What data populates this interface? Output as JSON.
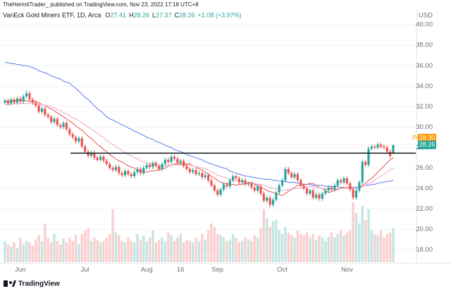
{
  "chart_data": {
    "type": "candlestick",
    "author": "TheHermitTrader_ published on TradingView.com, Nov 23, 2022 17:18 UTC+8",
    "title": "VanEck Gold Miners ETF, 1D, Arca",
    "ohlc_keys": [
      "O",
      "H",
      "L",
      "C"
    ],
    "change_label": "+1.08 (+3.97%)",
    "currency": "USD",
    "footer": "TradingView",
    "up_color": "#26a69a",
    "down_color": "#ef5350",
    "categories": [
      null,
      null,
      null,
      null,
      null,
      "Jun",
      null,
      null,
      null,
      null,
      null,
      null,
      null,
      null,
      null,
      null,
      null,
      null,
      null,
      null,
      null,
      null,
      null,
      null,
      null,
      null,
      "Jul",
      null,
      null,
      null,
      null,
      null,
      null,
      null,
      null,
      null,
      null,
      null,
      null,
      null,
      null,
      null,
      null,
      null,
      null,
      null,
      "Aug",
      null,
      null,
      null,
      null,
      null,
      null,
      null,
      null,
      null,
      null,
      "16",
      null,
      null,
      null,
      null,
      null,
      null,
      null,
      null,
      null,
      null,
      null,
      "Sep",
      null,
      null,
      null,
      null,
      null,
      null,
      null,
      null,
      null,
      null,
      null,
      null,
      null,
      null,
      null,
      null,
      null,
      null,
      null,
      null,
      "Oct",
      null,
      null,
      null,
      null,
      null,
      null,
      null,
      null,
      null,
      null,
      null,
      null,
      null,
      null,
      null,
      null,
      null,
      null,
      null,
      null,
      "Nov",
      null,
      null,
      null,
      null,
      null,
      null,
      null,
      null,
      null,
      null,
      null,
      null,
      null,
      null,
      null
    ],
    "open": [
      32.4,
      32.6,
      32.3,
      32.7,
      32.4,
      32.8,
      32.5,
      33.0,
      33.3,
      32.7,
      32.4,
      32.1,
      31.5,
      31.8,
      31.2,
      31.0,
      30.5,
      30.8,
      30.2,
      30.0,
      30.4,
      29.8,
      29.3,
      29.0,
      28.6,
      28.9,
      28.1,
      27.6,
      27.2,
      27.5,
      27.0,
      26.8,
      27.1,
      26.7,
      26.4,
      26.0,
      25.8,
      26.1,
      25.5,
      25.3,
      25.7,
      25.4,
      25.2,
      25.6,
      25.9,
      25.5,
      26.0,
      26.3,
      26.1,
      26.5,
      26.2,
      25.9,
      26.4,
      26.8,
      26.6,
      27.1,
      26.9,
      26.5,
      26.7,
      26.2,
      25.9,
      25.6,
      25.8,
      25.4,
      25.5,
      25.1,
      25.3,
      24.8,
      24.3,
      23.8,
      23.4,
      23.9,
      24.4,
      24.2,
      24.8,
      25.2,
      25.0,
      24.6,
      24.8,
      24.4,
      24.5,
      24.1,
      23.8,
      24.2,
      23.5,
      22.8,
      23.1,
      22.4,
      22.9,
      23.6,
      24.3,
      24.8,
      25.9,
      25.5,
      25.1,
      25.4,
      24.8,
      24.3,
      24.0,
      23.5,
      23.8,
      23.1,
      23.4,
      23.0,
      23.5,
      23.8,
      24.1,
      23.9,
      24.3,
      24.8,
      24.6,
      25.0,
      24.5,
      23.9,
      23.1,
      23.8,
      24.6,
      26.6,
      26.3,
      27.9,
      28.1,
      28.0,
      28.3,
      28.1,
      28.0,
      27.6,
      27.41
    ],
    "high": [
      32.8,
      32.8,
      32.9,
      32.9,
      33.0,
      33.0,
      33.2,
      33.6,
      33.5,
      32.9,
      32.6,
      32.3,
      32.0,
      32.0,
      31.4,
      31.2,
      31.0,
      31.0,
      30.4,
      30.6,
      30.6,
      30.0,
      29.5,
      29.2,
      29.1,
      29.1,
      28.3,
      27.8,
      27.7,
      27.7,
      27.2,
      27.3,
      27.3,
      26.9,
      26.6,
      26.2,
      26.3,
      26.3,
      25.7,
      25.9,
      25.9,
      25.6,
      25.8,
      26.1,
      26.1,
      26.2,
      26.5,
      26.5,
      26.7,
      26.7,
      26.4,
      26.6,
      27.0,
      27.0,
      27.3,
      27.3,
      27.1,
      26.9,
      26.9,
      26.4,
      26.1,
      26.0,
      26.0,
      25.7,
      25.7,
      25.5,
      25.5,
      25.0,
      24.5,
      24.0,
      24.1,
      24.6,
      24.6,
      25.0,
      25.4,
      25.4,
      25.2,
      25.0,
      25.0,
      24.7,
      24.7,
      24.3,
      24.4,
      24.4,
      23.7,
      23.3,
      23.3,
      23.1,
      23.8,
      24.5,
      25.0,
      26.1,
      26.1,
      25.7,
      25.6,
      25.6,
      25.0,
      24.5,
      24.2,
      24.0,
      24.0,
      23.6,
      23.6,
      23.7,
      24.0,
      24.3,
      24.3,
      24.5,
      25.0,
      25.0,
      25.2,
      25.2,
      24.7,
      24.1,
      24.0,
      24.8,
      26.8,
      26.8,
      28.1,
      28.3,
      28.3,
      28.5,
      28.5,
      28.3,
      28.2,
      27.8,
      28.26
    ],
    "low": [
      32.2,
      32.1,
      32.1,
      32.2,
      32.2,
      32.3,
      32.3,
      32.8,
      32.5,
      32.2,
      31.9,
      31.3,
      31.3,
      31.0,
      30.8,
      30.3,
      30.3,
      30.0,
      29.8,
      29.8,
      29.6,
      29.1,
      28.8,
      28.4,
      28.4,
      27.9,
      27.4,
      27.0,
      27.0,
      26.8,
      26.6,
      26.6,
      26.5,
      26.2,
      25.8,
      25.6,
      25.6,
      25.3,
      25.1,
      25.1,
      25.2,
      25.0,
      25.0,
      25.4,
      25.3,
      25.3,
      25.8,
      25.9,
      25.9,
      26.0,
      25.7,
      25.7,
      26.2,
      26.4,
      26.4,
      26.7,
      26.3,
      26.3,
      26.0,
      25.7,
      25.4,
      25.4,
      25.2,
      25.2,
      24.9,
      24.9,
      24.6,
      24.1,
      23.6,
      23.2,
      23.2,
      23.7,
      24.0,
      24.0,
      24.6,
      24.8,
      24.4,
      24.4,
      24.2,
      24.2,
      23.9,
      23.6,
      23.6,
      23.3,
      22.6,
      22.6,
      22.1,
      22.2,
      22.7,
      23.4,
      24.1,
      24.6,
      25.3,
      24.9,
      24.9,
      24.6,
      24.1,
      23.8,
      23.3,
      23.3,
      22.9,
      22.9,
      22.8,
      22.8,
      23.3,
      23.6,
      23.7,
      23.7,
      24.1,
      24.4,
      24.4,
      24.3,
      23.7,
      22.9,
      22.9,
      23.6,
      24.4,
      26.1,
      26.1,
      27.7,
      27.8,
      27.8,
      27.9,
      27.8,
      27.4,
      27.0,
      27.37
    ],
    "close": [
      32.6,
      32.3,
      32.7,
      32.4,
      32.8,
      32.5,
      33.0,
      33.3,
      32.7,
      32.4,
      32.1,
      31.5,
      31.8,
      31.2,
      31.0,
      30.5,
      30.8,
      30.2,
      30.0,
      30.4,
      29.8,
      29.3,
      29.0,
      28.6,
      28.9,
      28.1,
      27.6,
      27.2,
      27.5,
      27.0,
      26.8,
      27.1,
      26.7,
      26.4,
      26.0,
      25.8,
      26.1,
      25.5,
      25.3,
      25.7,
      25.4,
      25.2,
      25.6,
      25.9,
      25.5,
      26.0,
      26.3,
      26.1,
      26.5,
      26.2,
      25.9,
      26.4,
      26.8,
      26.6,
      27.1,
      26.9,
      26.5,
      26.7,
      26.2,
      25.9,
      25.6,
      25.8,
      25.4,
      25.5,
      25.1,
      25.3,
      24.8,
      24.3,
      23.8,
      23.4,
      23.9,
      24.4,
      24.2,
      24.8,
      25.2,
      25.0,
      24.6,
      24.8,
      24.4,
      24.5,
      24.1,
      23.8,
      24.2,
      23.5,
      22.8,
      23.1,
      22.4,
      22.9,
      23.6,
      24.3,
      24.8,
      25.9,
      25.5,
      25.1,
      25.4,
      24.8,
      24.3,
      24.0,
      23.5,
      23.8,
      23.1,
      23.4,
      23.0,
      23.5,
      23.8,
      24.1,
      23.9,
      24.3,
      24.8,
      24.6,
      25.0,
      24.5,
      23.9,
      23.1,
      23.8,
      24.6,
      26.6,
      26.3,
      27.9,
      28.1,
      28.0,
      28.3,
      28.1,
      28.0,
      27.6,
      27.18,
      28.26
    ],
    "volume": [
      30,
      25,
      22,
      28,
      20,
      35,
      25,
      30,
      28,
      24,
      32,
      38,
      30,
      55,
      35,
      28,
      40,
      30,
      25,
      33,
      28,
      35,
      30,
      38,
      26,
      40,
      45,
      48,
      30,
      35,
      32,
      28,
      30,
      35,
      40,
      75,
      42,
      38,
      30,
      28,
      35,
      30,
      28,
      40,
      32,
      38,
      30,
      35,
      45,
      28,
      32,
      35,
      30,
      42,
      38,
      30,
      35,
      40,
      28,
      32,
      30,
      28,
      35,
      30,
      40,
      32,
      45,
      55,
      50,
      40,
      38,
      35,
      30,
      32,
      40,
      35,
      28,
      30,
      35,
      32,
      30,
      38,
      35,
      48,
      75,
      62,
      50,
      58,
      60,
      45,
      40,
      50,
      42,
      38,
      35,
      45,
      40,
      38,
      42,
      35,
      40,
      32,
      38,
      35,
      30,
      36,
      42,
      35,
      40,
      45,
      38,
      42,
      45,
      85,
      70,
      55,
      80,
      60,
      75,
      45,
      40,
      38,
      45,
      35,
      40,
      42,
      48
    ],
    "volume_lim": [
      0,
      100
    ],
    "series": [
      {
        "color": "#5b7be6",
        "values": [
          36.3,
          36.3,
          36.2,
          36.2,
          36.1,
          36.1,
          36.0,
          36.0,
          35.9,
          35.8,
          35.7,
          35.5,
          35.4,
          35.3,
          35.2,
          35.0,
          34.9,
          34.8,
          34.7,
          34.5,
          34.4,
          34.3,
          34.0,
          33.8,
          33.5,
          33.2,
          32.9,
          32.7,
          32.4,
          32.1,
          31.8,
          31.6,
          31.3,
          31.0,
          30.8,
          30.7,
          30.5,
          30.4,
          30.2,
          30.1,
          29.9,
          29.8,
          29.6,
          29.5,
          29.3,
          29.2,
          29.0,
          28.9,
          28.8,
          28.6,
          28.5,
          28.4,
          28.2,
          28.1,
          28.0,
          27.8,
          27.7,
          27.6,
          27.5,
          27.3,
          27.2,
          27.1,
          27.0,
          26.9,
          26.8,
          26.6,
          26.5,
          26.4,
          26.3,
          26.2,
          26.1,
          26.0,
          25.9,
          25.7,
          25.6,
          25.5,
          25.4,
          25.3,
          25.2,
          25.2,
          25.1,
          25.1,
          25.0,
          25.0,
          24.9,
          24.9,
          24.9,
          24.8,
          24.8,
          24.7,
          24.7,
          24.7,
          24.6,
          24.6,
          24.6,
          24.5,
          24.5,
          24.4,
          24.4,
          24.4,
          24.3,
          24.3,
          24.3,
          24.3,
          24.2,
          24.2,
          24.2,
          24.2,
          24.2,
          24.1,
          24.1,
          24.1,
          24.1,
          24.1,
          24.1,
          24.2,
          24.2,
          24.3,
          24.3,
          24.4,
          24.4,
          24.5,
          24.6,
          24.6,
          24.7,
          24.7,
          24.8
        ]
      },
      {
        "color": "#e5534b",
        "values": [
          32.5,
          32.5,
          32.5,
          32.6,
          32.6,
          32.6,
          32.6,
          32.6,
          32.5,
          32.5,
          32.5,
          32.4,
          32.2,
          32.1,
          31.9,
          31.8,
          31.6,
          31.4,
          31.2,
          31.0,
          30.8,
          30.6,
          30.4,
          30.1,
          29.9,
          29.7,
          29.4,
          29.1,
          28.9,
          28.6,
          28.3,
          28.1,
          27.8,
          27.6,
          27.3,
          27.1,
          26.9,
          26.7,
          26.6,
          26.4,
          26.2,
          26.1,
          26.0,
          25.8,
          25.7,
          25.6,
          25.6,
          25.7,
          25.7,
          25.8,
          25.8,
          25.9,
          26.0,
          26.2,
          26.3,
          26.4,
          26.4,
          26.4,
          26.4,
          26.4,
          26.4,
          26.2,
          26.1,
          25.9,
          25.8,
          25.6,
          25.4,
          25.2,
          25.0,
          24.8,
          24.6,
          24.5,
          24.5,
          24.4,
          24.4,
          24.3,
          24.4,
          24.4,
          24.5,
          24.5,
          24.6,
          24.4,
          24.3,
          24.1,
          24.0,
          23.8,
          23.7,
          23.6,
          23.5,
          23.4,
          23.3,
          23.5,
          23.7,
          23.9,
          24.1,
          24.3,
          24.3,
          24.4,
          24.4,
          24.5,
          24.5,
          24.3,
          24.1,
          24.0,
          23.8,
          23.6,
          23.7,
          23.8,
          23.9,
          24.0,
          24.1,
          24.1,
          24.1,
          24.0,
          24.0,
          24.0,
          24.3,
          24.5,
          24.8,
          25.0,
          25.3,
          25.6,
          25.9,
          26.2,
          26.5,
          26.8,
          27.0
        ]
      },
      {
        "color": "#f2a3c4",
        "values": [
          32.2,
          32.2,
          32.2,
          32.3,
          32.3,
          32.3,
          32.3,
          32.3,
          32.3,
          32.3,
          32.3,
          32.2,
          32.2,
          32.1,
          32.1,
          32.0,
          31.9,
          31.7,
          31.6,
          31.4,
          31.3,
          31.1,
          30.9,
          30.8,
          30.6,
          30.4,
          30.2,
          30.0,
          29.8,
          29.6,
          29.4,
          29.2,
          29.0,
          28.7,
          28.5,
          28.3,
          28.1,
          27.9,
          27.7,
          27.5,
          27.3,
          27.2,
          27.0,
          26.9,
          26.7,
          26.6,
          26.5,
          26.4,
          26.4,
          26.3,
          26.2,
          26.2,
          26.2,
          26.3,
          26.3,
          26.3,
          26.3,
          26.3,
          26.3,
          26.3,
          26.3,
          26.2,
          26.1,
          26.1,
          26.0,
          25.9,
          25.8,
          25.6,
          25.5,
          25.3,
          25.2,
          25.1,
          25.0,
          24.9,
          24.8,
          24.7,
          24.7,
          24.7,
          24.6,
          24.6,
          24.6,
          24.5,
          24.4,
          24.4,
          24.3,
          24.2,
          24.1,
          24.0,
          24.0,
          23.9,
          23.8,
          23.8,
          23.9,
          23.9,
          24.0,
          24.0,
          24.0,
          24.1,
          24.1,
          24.2,
          24.2,
          24.1,
          24.1,
          24.0,
          24.0,
          23.9,
          23.9,
          23.9,
          24.0,
          24.0,
          24.0,
          24.0,
          24.0,
          24.0,
          24.0,
          24.0,
          24.2,
          24.3,
          24.5,
          24.6,
          24.8,
          25.0,
          25.2,
          25.4,
          25.6,
          25.8,
          26.0
        ]
      }
    ],
    "hline": 27.45,
    "pre": {
      "label": "Pre",
      "value": 28.3,
      "value_label": "28.30",
      "color": "#ff9800"
    },
    "ylim": [
      16.8,
      40.7
    ],
    "yticks": [
      {
        "value": 18,
        "label": "18.00"
      },
      {
        "value": 20,
        "label": "20.00"
      },
      {
        "value": 22,
        "label": "22.00"
      },
      {
        "value": 24,
        "label": "24.00"
      },
      {
        "value": 26,
        "label": "26.00"
      },
      {
        "value": 28,
        "label": "28.00"
      },
      {
        "value": 30,
        "label": "30.00"
      },
      {
        "value": 32,
        "label": "32.00"
      },
      {
        "value": 34,
        "label": "34.00"
      },
      {
        "value": 36,
        "label": "36.00"
      },
      {
        "value": 38,
        "label": "38.00"
      },
      {
        "value": 40,
        "label": "40.00"
      }
    ],
    "grid": true
  }
}
